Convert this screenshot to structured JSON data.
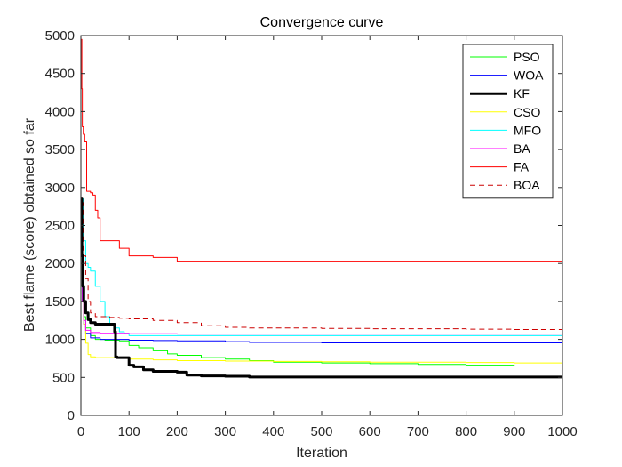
{
  "chart_data": {
    "type": "line",
    "title": "Convergence curve",
    "xlabel": "Iteration",
    "ylabel": "Best flame (score) obtained so far",
    "xlim": [
      0,
      1000
    ],
    "ylim": [
      0,
      5000
    ],
    "xticks": [
      0,
      100,
      200,
      300,
      400,
      500,
      600,
      700,
      800,
      900,
      1000
    ],
    "yticks": [
      0,
      500,
      1000,
      1500,
      2000,
      2500,
      3000,
      3500,
      4000,
      4500,
      5000
    ],
    "grid": false,
    "legend_position": "top-right",
    "series": [
      {
        "name": "PSO",
        "color": "#00ff00",
        "style": "solid",
        "width": 1,
        "x": [
          1,
          3,
          6,
          10,
          20,
          30,
          50,
          80,
          100,
          120,
          150,
          180,
          200,
          250,
          300,
          350,
          400,
          500,
          600,
          700,
          800,
          900,
          1000
        ],
        "y": [
          2400,
          1600,
          1300,
          1150,
          1050,
          1000,
          990,
          980,
          920,
          890,
          850,
          810,
          790,
          760,
          740,
          720,
          700,
          690,
          680,
          670,
          660,
          650,
          645
        ]
      },
      {
        "name": "WOA",
        "color": "#0000ff",
        "style": "solid",
        "width": 1,
        "x": [
          1,
          3,
          6,
          10,
          20,
          40,
          100,
          150,
          200,
          300,
          350,
          400,
          500,
          600,
          700,
          800,
          900,
          1000
        ],
        "y": [
          2300,
          1500,
          1200,
          1080,
          1020,
          1000,
          990,
          985,
          980,
          970,
          960,
          960,
          955,
          955,
          955,
          955,
          955,
          955
        ]
      },
      {
        "name": "KF",
        "color": "#000000",
        "style": "solid",
        "width": 3,
        "x": [
          1,
          2,
          4,
          6,
          10,
          15,
          20,
          30,
          40,
          50,
          60,
          70,
          72,
          75,
          80,
          90,
          100,
          110,
          130,
          150,
          200,
          220,
          250,
          300,
          350,
          400,
          500,
          600,
          700,
          800,
          900,
          1000
        ],
        "y": [
          2850,
          2100,
          1700,
          1500,
          1350,
          1260,
          1220,
          1200,
          1200,
          1200,
          1200,
          1100,
          770,
          760,
          760,
          760,
          660,
          640,
          600,
          580,
          570,
          530,
          520,
          515,
          505,
          505,
          505,
          505,
          505,
          505,
          505,
          505
        ]
      },
      {
        "name": "CSO",
        "color": "#ffff00",
        "style": "solid",
        "width": 1,
        "x": [
          1,
          3,
          6,
          10,
          15,
          20,
          30,
          80,
          100,
          150,
          200,
          300,
          400,
          500,
          600,
          700,
          800,
          900,
          950,
          1000
        ],
        "y": [
          2350,
          1700,
          1200,
          950,
          800,
          770,
          760,
          760,
          740,
          730,
          720,
          715,
          710,
          705,
          700,
          700,
          695,
          690,
          690,
          690
        ]
      },
      {
        "name": "MFO",
        "color": "#00ffff",
        "style": "solid",
        "width": 1,
        "x": [
          1,
          5,
          10,
          15,
          20,
          30,
          40,
          50,
          60,
          70,
          80,
          90,
          100,
          150,
          200,
          300,
          400,
          500,
          600,
          700,
          800,
          900,
          1000
        ],
        "y": [
          2850,
          2300,
          2000,
          1950,
          1900,
          1700,
          1500,
          1300,
          1200,
          1150,
          1100,
          1080,
          1050,
          1050,
          1050,
          1050,
          1050,
          1050,
          1050,
          1050,
          1050,
          1050,
          1050
        ]
      },
      {
        "name": "BA",
        "color": "#ff00ff",
        "style": "solid",
        "width": 1,
        "x": [
          1,
          3,
          6,
          10,
          20,
          40,
          100,
          200,
          300,
          400,
          500,
          600,
          700,
          800,
          900,
          1000
        ],
        "y": [
          2200,
          1500,
          1250,
          1120,
          1090,
          1080,
          1075,
          1070,
          1070,
          1070,
          1070,
          1070,
          1070,
          1070,
          1070,
          1070
        ]
      },
      {
        "name": "FA",
        "color": "#ff0000",
        "style": "solid",
        "width": 1,
        "x": [
          1,
          2,
          3,
          5,
          8,
          12,
          20,
          25,
          30,
          35,
          40,
          50,
          60,
          80,
          100,
          120,
          150,
          200,
          250,
          300,
          400,
          500,
          600,
          700,
          800,
          900,
          1000
        ],
        "y": [
          4950,
          4300,
          3800,
          3700,
          3600,
          2950,
          2930,
          2900,
          2700,
          2600,
          2300,
          2300,
          2300,
          2200,
          2100,
          2100,
          2080,
          2030,
          2030,
          2030,
          2030,
          2030,
          2030,
          2030,
          2030,
          2030,
          2030
        ]
      },
      {
        "name": "BOA",
        "color": "#cc0000",
        "style": "dashed",
        "width": 1,
        "x": [
          1,
          5,
          10,
          15,
          20,
          30,
          40,
          50,
          60,
          80,
          100,
          150,
          200,
          250,
          300,
          350,
          400,
          500,
          600,
          700,
          800,
          900,
          1000
        ],
        "y": [
          2800,
          2100,
          1800,
          1500,
          1350,
          1300,
          1300,
          1300,
          1290,
          1280,
          1270,
          1250,
          1220,
          1180,
          1160,
          1150,
          1150,
          1145,
          1140,
          1140,
          1135,
          1130,
          1130
        ]
      }
    ]
  }
}
